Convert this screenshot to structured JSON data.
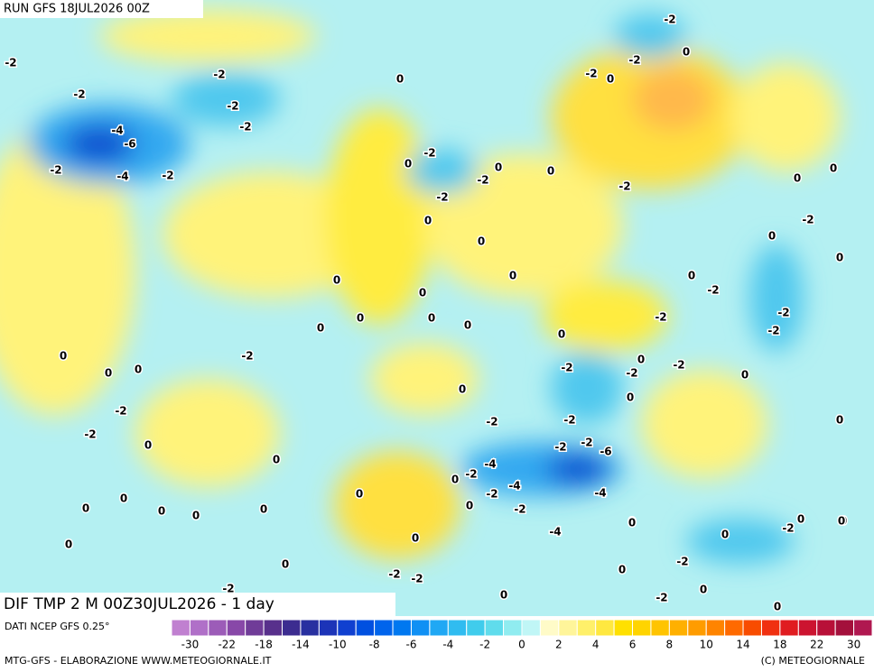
{
  "header": {
    "run": "RUN GFS 18JUL2026 00Z"
  },
  "map": {
    "title": "DIF TMP 2 M 00Z30JUL2026 - 1 day",
    "contour_labels": [
      "-2",
      "-2",
      "-2",
      "-2",
      "-2",
      "-2",
      "-4",
      "-6",
      "-2",
      "-4",
      "-2",
      "0",
      "-2",
      "-2",
      "0",
      "0",
      "-2",
      "0",
      "0",
      "0",
      "-2",
      "-2",
      "-2",
      "0",
      "0",
      "0",
      "0",
      "-2",
      "0",
      "0",
      "0",
      "0",
      "0",
      "0",
      "-2",
      "-2",
      "-2",
      "-2",
      "0",
      "0",
      "0",
      "0",
      "0",
      "-2",
      "0",
      "0",
      "0",
      "-2",
      "0",
      "-2",
      "-2",
      "-2",
      "0",
      "0",
      "0",
      "-2",
      "-2",
      "0",
      "0",
      "-2",
      "-2",
      "-2",
      "-2",
      "-6",
      "-4",
      "-2",
      "0",
      "-2",
      "-4",
      "-4",
      "0",
      "0",
      "0",
      "0",
      "0",
      "0",
      "0",
      "-2",
      "-2",
      "0",
      "0",
      "0",
      "-4",
      "0",
      "0",
      "0",
      "0",
      "0",
      "-2",
      "0",
      "-2",
      "-2",
      "0",
      "-2",
      "0",
      "0",
      "0",
      "0"
    ]
  },
  "legend": {
    "source": "DATI NCEP GFS 0.25°",
    "colors": [
      "#c080d0",
      "#b070c8",
      "#9c5cb8",
      "#8848a8",
      "#703c98",
      "#58308c",
      "#3c2c90",
      "#2830a0",
      "#1c34b8",
      "#1040d0",
      "#0050e0",
      "#0064ec",
      "#0078f0",
      "#1090f4",
      "#20a8f4",
      "#30bcf0",
      "#40ccec",
      "#60dcec",
      "#90ecf0",
      "#c0f6f6",
      "#fffbc8",
      "#fff59a",
      "#fff06a",
      "#ffe840",
      "#ffe000",
      "#ffd400",
      "#ffc400",
      "#ffb000",
      "#ff9c00",
      "#ff8400",
      "#ff6a00",
      "#f84c00",
      "#f03010",
      "#e01c20",
      "#cc1430",
      "#b81038",
      "#a4103c",
      "#b01850"
    ],
    "ticks": [
      "-30",
      "-22",
      "-18",
      "-14",
      "-10",
      "-8",
      "-6",
      "-4",
      "-2",
      "0",
      "2",
      "4",
      "6",
      "8",
      "10",
      "14",
      "18",
      "22",
      "30"
    ]
  },
  "footer": {
    "left": "MTG-GFS - ELABORAZIONE WWW.METEOGIORNALE.IT",
    "right": "(C) METEOGIORNALE"
  }
}
